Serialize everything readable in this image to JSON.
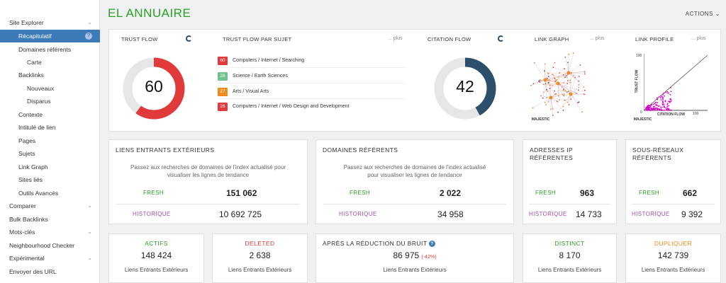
{
  "sidebar": {
    "items": [
      {
        "label": "Site Explorer",
        "chevron": true
      },
      {
        "label": "Récapitulatif",
        "active": true,
        "help": "?"
      },
      {
        "label": "Domaines référents"
      },
      {
        "label": "Carte"
      },
      {
        "label": "Backlinks"
      },
      {
        "label": "Nouveaux"
      },
      {
        "label": "Disparus"
      },
      {
        "label": "Contexte"
      },
      {
        "label": "Intitulé de lien"
      },
      {
        "label": "Pages"
      },
      {
        "label": "Sujets"
      },
      {
        "label": "Link Graph"
      },
      {
        "label": "Sites liés"
      },
      {
        "label": "Outils Avancés"
      },
      {
        "label": "Comparer",
        "chevron": true
      },
      {
        "label": "Bulk Backlinks"
      },
      {
        "label": "Mots-clés",
        "chevron": true
      },
      {
        "label": "Neighbourhood Checker"
      },
      {
        "label": "Expérimental",
        "chevron": true
      },
      {
        "label": "Envoyer des URL"
      }
    ]
  },
  "header": {
    "title": "EL ANNUAIRE",
    "actions": "ACTIONS",
    "actions_icon": "chevron-down-icon"
  },
  "overview": {
    "trust_flow": {
      "label": "TRUST FLOW",
      "value": "60",
      "fraction": 0.6,
      "color": "#e03a3a"
    },
    "topical": {
      "label": "TRUST FLOW PAR SUJET",
      "plus": "... plus",
      "topics": [
        {
          "score": "60",
          "label": "Computers / Internet / Searching",
          "color": "#e03a3a"
        },
        {
          "score": "28",
          "label": "Science / Earth Sciences",
          "color": "#6cc38d"
        },
        {
          "score": "27",
          "label": "Arts / Visual Arts",
          "color": "#f08a1c"
        },
        {
          "score": "26",
          "label": "Computers / Internet / Web Design and Development",
          "color": "#e03a3a"
        }
      ]
    },
    "citation_flow": {
      "label": "CITATION FLOW",
      "value": "42",
      "fraction": 0.42,
      "color": "#2c4f6c"
    },
    "link_graph": {
      "label": "LINK GRAPH",
      "plus": "... plus",
      "logo": "MAJESTIC"
    },
    "link_profile": {
      "label": "LINK PROFILE",
      "plus": "... plus",
      "y_axis_label": "TRUST FLOW",
      "x_axis_label": "CITATION FLOW",
      "y_max": "100",
      "x_max": "100",
      "zero": "0",
      "logo": "MAJESTIC"
    }
  },
  "backlinks_card": {
    "title": "LIENS ENTRANTS EXTÉRIEURS",
    "note": "Passez aux recherches de domaines de l'index actualisé pour visualiser les lignes de tendance",
    "fresh_label": "FRESH",
    "fresh_value": "151 062",
    "historic_label": "HISTORIQUE",
    "historic_value": "10 692 725"
  },
  "domains_card": {
    "title": "DOMAINES RÉFÉRENTS",
    "note": "Passez aux recherches de domaines de l'index actualisé pour visualiser les lignes de tendance",
    "fresh_label": "FRESH",
    "fresh_value": "2 022",
    "historic_label": "HISTORIQUE",
    "historic_value": "34 958"
  },
  "ips_card": {
    "title": "ADRESSES IP RÉFÉRENTES",
    "fresh_label": "FRESH",
    "fresh_value": "963",
    "historic_label": "HISTORIQUE",
    "historic_value": "14 733"
  },
  "subnets_card": {
    "title": "SOUS-RÉSEAUX RÉFÉRENTS",
    "fresh_label": "FRESH",
    "fresh_value": "662",
    "historic_label": "HISTORIQUE",
    "historic_value": "9 392"
  },
  "bottom": {
    "actifs": {
      "title": "ACTIFS",
      "value": "148 424",
      "sub": "Liens Entrants Extérieurs",
      "color": "#2aa023"
    },
    "deleted": {
      "title": "DELETED",
      "value": "2 638",
      "sub": "Liens Entrants Extérieurs",
      "color": "#d63b3b"
    },
    "noise": {
      "title": "APRÈS LA RÉDUCTION DU BRUIT",
      "help": "?",
      "value": "86 975",
      "delta": "(-42%)",
      "sub": "Liens Entrants Extérieurs"
    },
    "distinct": {
      "title": "DISTINCT",
      "value": "8 170",
      "sub": "Liens Entrants Extérieurs",
      "color": "#2aa023"
    },
    "duplicate": {
      "title": "DUPLIQUER",
      "value": "142 739",
      "sub": "Liens Entrants Extérieurs",
      "color": "#f08a1c"
    }
  }
}
